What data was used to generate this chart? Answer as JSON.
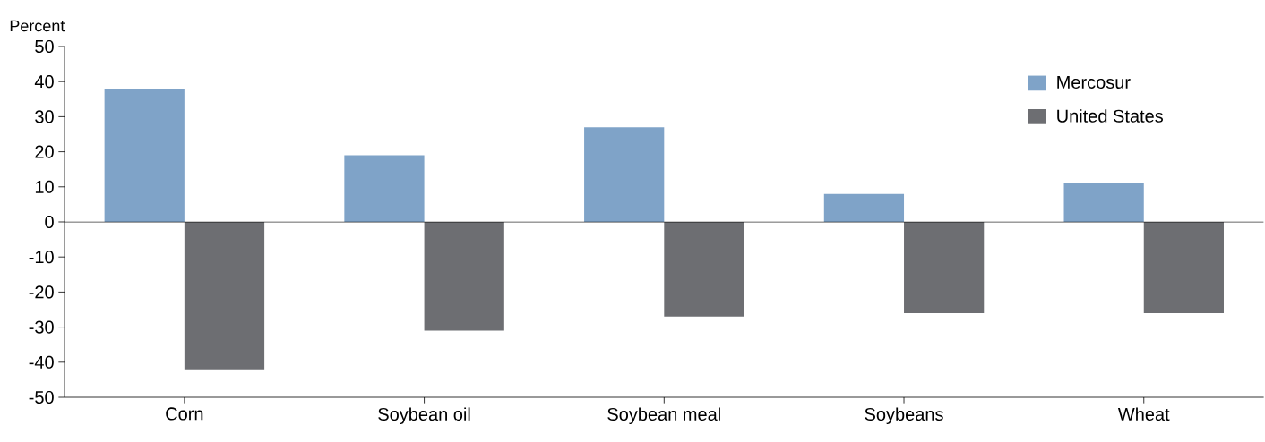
{
  "chart_data": {
    "type": "bar",
    "ylabel": "Percent",
    "categories": [
      "Corn",
      "Soybean oil",
      "Soybean meal",
      "Soybeans",
      "Wheat"
    ],
    "series": [
      {
        "name": "Mercosur",
        "color": "#7fa3c8",
        "values": [
          38,
          19,
          27,
          8,
          11
        ]
      },
      {
        "name": "United States",
        "color": "#6d6e72",
        "values": [
          -42,
          -31,
          -27,
          -26,
          -26
        ]
      }
    ],
    "ylim": [
      -50,
      50
    ],
    "yticks": [
      -50,
      -40,
      -30,
      -20,
      -10,
      0,
      10,
      20,
      30,
      40,
      50
    ],
    "ref_lines": [
      {
        "axis": "y",
        "value": 0,
        "color": "#000000"
      }
    ],
    "legend": "top right"
  }
}
